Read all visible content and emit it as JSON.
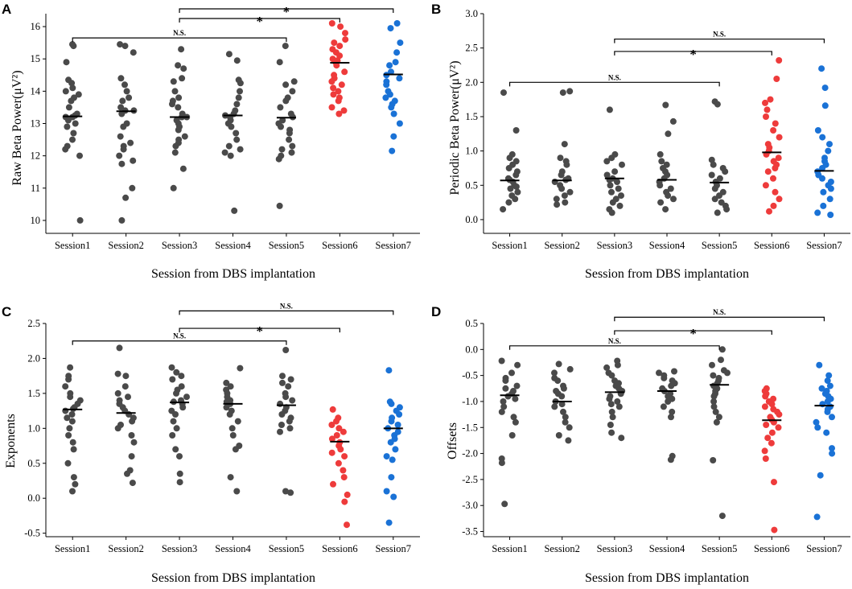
{
  "colors": {
    "gray": "#4a4a4a",
    "red": "#ee3b3b",
    "blue": "#1a72d6"
  },
  "chart_data": [
    {
      "panel": "A",
      "type": "scatter",
      "xlabel": "Session from DBS implantation",
      "ylabel": "Raw Beta Power(μV²)",
      "ylim": [
        9.6,
        16.4
      ],
      "yticks": [
        10,
        11,
        12,
        13,
        14,
        15,
        16
      ],
      "ytick_labels": [
        "10",
        "11",
        "12",
        "13",
        "14",
        "15",
        "16"
      ],
      "categories": [
        "Session1",
        "Session2",
        "Session3",
        "Session4",
        "Session5",
        "Session6",
        "Session7"
      ],
      "series": [
        {
          "name": "Session1",
          "color": "gray",
          "median": 13.22,
          "values": [
            15.45,
            15.4,
            14.9,
            14.35,
            14.25,
            14.1,
            14.0,
            13.9,
            13.8,
            13.7,
            13.5,
            13.3,
            13.25,
            13.2,
            13.2,
            13.1,
            13.0,
            12.9,
            12.7,
            12.5,
            12.3,
            12.2,
            12.0,
            10.0
          ]
        },
        {
          "name": "Session2",
          "color": "gray",
          "median": 13.38,
          "values": [
            15.45,
            15.4,
            15.2,
            14.4,
            14.2,
            14.0,
            13.8,
            13.7,
            13.5,
            13.4,
            13.4,
            13.3,
            13.0,
            12.9,
            12.6,
            12.4,
            12.3,
            12.2,
            12.0,
            11.85,
            11.75,
            11.0,
            10.7,
            10.0
          ]
        },
        {
          "name": "Session3",
          "color": "gray",
          "median": 13.2,
          "values": [
            15.3,
            14.8,
            14.7,
            14.4,
            14.3,
            14.0,
            13.8,
            13.7,
            13.6,
            13.5,
            13.3,
            13.2,
            13.2,
            13.1,
            13.0,
            12.9,
            12.8,
            12.6,
            12.5,
            12.4,
            12.3,
            12.1,
            11.6,
            11.0
          ]
        },
        {
          "name": "Session4",
          "color": "gray",
          "median": 13.25,
          "values": [
            15.15,
            14.95,
            14.35,
            14.25,
            14.0,
            13.8,
            13.6,
            13.4,
            13.3,
            13.25,
            13.2,
            13.1,
            13.0,
            12.9,
            12.7,
            12.5,
            12.3,
            12.2,
            12.1,
            12.0,
            10.3
          ]
        },
        {
          "name": "Session5",
          "color": "gray",
          "median": 13.18,
          "values": [
            15.4,
            14.9,
            14.3,
            14.2,
            14.0,
            13.8,
            13.7,
            13.5,
            13.3,
            13.2,
            13.1,
            13.0,
            12.9,
            12.8,
            12.7,
            12.5,
            12.3,
            12.2,
            12.1,
            12.0,
            11.9,
            10.45
          ]
        },
        {
          "name": "Session6",
          "color": "red",
          "median": 14.88,
          "values": [
            16.1,
            16.0,
            15.8,
            15.6,
            15.5,
            15.4,
            15.3,
            15.2,
            15.1,
            15.0,
            14.95,
            14.9,
            14.8,
            14.6,
            14.5,
            14.4,
            14.3,
            14.2,
            14.1,
            14.0,
            13.9,
            13.8,
            13.7,
            13.5,
            13.4,
            13.3
          ]
        },
        {
          "name": "Session7",
          "color": "blue",
          "median": 14.52,
          "values": [
            16.1,
            15.95,
            15.5,
            15.2,
            14.9,
            14.8,
            14.6,
            14.5,
            14.4,
            14.3,
            14.2,
            14.0,
            13.9,
            13.8,
            13.7,
            13.6,
            13.5,
            13.3,
            13.0,
            12.6,
            12.15
          ]
        }
      ],
      "brackets": [
        {
          "from": 0,
          "to": 4,
          "label": "N.S.",
          "y": 15.65
        },
        {
          "from": 2,
          "to": 5,
          "label": "*",
          "y": 16.25
        },
        {
          "from": 2,
          "to": 6,
          "label": "*",
          "y": 16.55
        }
      ]
    },
    {
      "panel": "B",
      "type": "scatter",
      "xlabel": "Session from DBS implantation",
      "ylabel": "Periodic Beta Power(μV²)",
      "ylim": [
        -0.2,
        3.0
      ],
      "yticks": [
        0.0,
        0.5,
        1.0,
        1.5,
        2.0,
        2.5,
        3.0
      ],
      "ytick_labels": [
        "0.0",
        "0.5",
        "1.0",
        "1.5",
        "2.0",
        "2.5",
        "3.0"
      ],
      "categories": [
        "Session1",
        "Session2",
        "Session3",
        "Session4",
        "Session5",
        "Session6",
        "Session7"
      ],
      "series": [
        {
          "name": "Session1",
          "color": "gray",
          "median": 0.57,
          "values": [
            1.85,
            1.3,
            0.95,
            0.9,
            0.85,
            0.8,
            0.75,
            0.7,
            0.65,
            0.6,
            0.58,
            0.55,
            0.5,
            0.48,
            0.45,
            0.4,
            0.35,
            0.3,
            0.25,
            0.15
          ]
        },
        {
          "name": "Session2",
          "color": "gray",
          "median": 0.57,
          "values": [
            1.87,
            1.85,
            1.1,
            0.9,
            0.85,
            0.8,
            0.7,
            0.65,
            0.6,
            0.58,
            0.55,
            0.5,
            0.45,
            0.4,
            0.35,
            0.3,
            0.25,
            0.22
          ]
        },
        {
          "name": "Session3",
          "color": "gray",
          "median": 0.6,
          "values": [
            1.6,
            0.95,
            0.9,
            0.85,
            0.8,
            0.7,
            0.65,
            0.6,
            0.58,
            0.55,
            0.5,
            0.45,
            0.4,
            0.35,
            0.3,
            0.25,
            0.2,
            0.15,
            0.1
          ]
        },
        {
          "name": "Session4",
          "color": "gray",
          "median": 0.58,
          "values": [
            1.67,
            1.43,
            1.25,
            0.95,
            0.85,
            0.8,
            0.75,
            0.7,
            0.65,
            0.6,
            0.55,
            0.5,
            0.45,
            0.4,
            0.35,
            0.3,
            0.25,
            0.15
          ]
        },
        {
          "name": "Session5",
          "color": "gray",
          "median": 0.54,
          "values": [
            1.72,
            1.68,
            0.87,
            0.8,
            0.75,
            0.7,
            0.65,
            0.6,
            0.55,
            0.5,
            0.45,
            0.4,
            0.35,
            0.3,
            0.25,
            0.2,
            0.15,
            0.1
          ]
        },
        {
          "name": "Session6",
          "color": "red",
          "median": 0.98,
          "values": [
            2.32,
            2.05,
            1.75,
            1.7,
            1.6,
            1.5,
            1.4,
            1.3,
            1.2,
            1.1,
            1.05,
            1.0,
            0.95,
            0.9,
            0.85,
            0.8,
            0.75,
            0.7,
            0.6,
            0.5,
            0.4,
            0.3,
            0.2,
            0.12
          ]
        },
        {
          "name": "Session7",
          "color": "blue",
          "median": 0.71,
          "values": [
            2.2,
            1.92,
            1.66,
            1.3,
            1.2,
            1.1,
            1.0,
            0.9,
            0.85,
            0.8,
            0.75,
            0.7,
            0.65,
            0.6,
            0.55,
            0.5,
            0.45,
            0.4,
            0.3,
            0.2,
            0.1,
            0.07
          ]
        }
      ],
      "brackets": [
        {
          "from": 0,
          "to": 4,
          "label": "N.S.",
          "y": 2.0
        },
        {
          "from": 2,
          "to": 5,
          "label": "*",
          "y": 2.45
        },
        {
          "from": 2,
          "to": 6,
          "label": "N.S.",
          "y": 2.63
        }
      ]
    },
    {
      "panel": "C",
      "type": "scatter",
      "xlabel": "Session from DBS implantation",
      "ylabel": "Exponents",
      "ylim": [
        -0.55,
        2.5
      ],
      "yticks": [
        -0.5,
        0.0,
        0.5,
        1.0,
        1.5,
        2.0,
        2.5
      ],
      "ytick_labels": [
        "-0.5",
        "0.0",
        "0.5",
        "1.0",
        "1.5",
        "2.0",
        "2.5"
      ],
      "categories": [
        "Session1",
        "Session2",
        "Session3",
        "Session4",
        "Session5",
        "Session6",
        "Session7"
      ],
      "series": [
        {
          "name": "Session1",
          "color": "gray",
          "median": 1.27,
          "values": [
            1.87,
            1.75,
            1.7,
            1.6,
            1.5,
            1.45,
            1.4,
            1.35,
            1.3,
            1.28,
            1.25,
            1.2,
            1.15,
            1.1,
            1.0,
            0.9,
            0.8,
            0.7,
            0.5,
            0.3,
            0.2,
            0.1
          ]
        },
        {
          "name": "Session2",
          "color": "gray",
          "median": 1.22,
          "values": [
            2.15,
            1.78,
            1.75,
            1.6,
            1.5,
            1.45,
            1.4,
            1.35,
            1.3,
            1.25,
            1.2,
            1.15,
            1.1,
            1.05,
            1.0,
            0.9,
            0.8,
            0.6,
            0.4,
            0.35,
            0.22
          ]
        },
        {
          "name": "Session3",
          "color": "gray",
          "median": 1.37,
          "values": [
            1.87,
            1.8,
            1.75,
            1.7,
            1.6,
            1.55,
            1.5,
            1.45,
            1.4,
            1.38,
            1.35,
            1.3,
            1.25,
            1.2,
            1.1,
            1.0,
            0.9,
            0.7,
            0.6,
            0.35,
            0.23
          ]
        },
        {
          "name": "Session4",
          "color": "gray",
          "median": 1.35,
          "values": [
            1.86,
            1.65,
            1.6,
            1.55,
            1.5,
            1.45,
            1.4,
            1.38,
            1.35,
            1.3,
            1.25,
            1.2,
            1.1,
            1.0,
            0.9,
            0.75,
            0.7,
            0.3,
            0.1
          ]
        },
        {
          "name": "Session5",
          "color": "gray",
          "median": 1.33,
          "values": [
            2.12,
            1.75,
            1.7,
            1.65,
            1.6,
            1.5,
            1.45,
            1.4,
            1.35,
            1.3,
            1.25,
            1.2,
            1.15,
            1.1,
            1.05,
            1.0,
            0.95,
            0.1,
            0.08
          ]
        },
        {
          "name": "Session6",
          "color": "red",
          "median": 0.81,
          "values": [
            1.27,
            1.15,
            1.1,
            1.05,
            1.0,
            0.95,
            0.9,
            0.85,
            0.8,
            0.75,
            0.7,
            0.65,
            0.6,
            0.5,
            0.4,
            0.3,
            0.2,
            0.05,
            -0.05,
            -0.38
          ]
        },
        {
          "name": "Session7",
          "color": "blue",
          "median": 1.0,
          "values": [
            1.83,
            1.38,
            1.35,
            1.3,
            1.25,
            1.2,
            1.15,
            1.1,
            1.05,
            1.0,
            0.95,
            0.9,
            0.85,
            0.8,
            0.7,
            0.6,
            0.55,
            0.3,
            0.1,
            0.02,
            -0.35
          ]
        }
      ],
      "brackets": [
        {
          "from": 0,
          "to": 4,
          "label": "N.S.",
          "y": 2.25
        },
        {
          "from": 2,
          "to": 5,
          "label": "*",
          "y": 2.43
        },
        {
          "from": 2,
          "to": 6,
          "label": "N.S.",
          "y": 2.68
        }
      ]
    },
    {
      "panel": "D",
      "type": "scatter",
      "xlabel": "Session from DBS implantation",
      "ylabel": "Offsets",
      "ylim": [
        -3.6,
        0.5
      ],
      "yticks": [
        -3.5,
        -3.0,
        -2.5,
        -2.0,
        -1.5,
        -1.0,
        -0.5,
        0.0,
        0.5
      ],
      "ytick_labels": [
        "-3.5",
        "-3.0",
        "-2.5",
        "-2.0",
        "-1.5",
        "-1.0",
        "-0.5",
        "0.0",
        "0.5"
      ],
      "categories": [
        "Session1",
        "Session2",
        "Session3",
        "Session4",
        "Session5",
        "Session6",
        "Session7"
      ],
      "series": [
        {
          "name": "Session1",
          "color": "gray",
          "median": -0.88,
          "values": [
            -0.22,
            -0.3,
            -0.45,
            -0.55,
            -0.6,
            -0.7,
            -0.75,
            -0.8,
            -0.85,
            -0.9,
            -0.95,
            -1.0,
            -1.1,
            -1.2,
            -1.3,
            -1.4,
            -1.65,
            -2.1,
            -2.18,
            -2.97
          ]
        },
        {
          "name": "Session2",
          "color": "gray",
          "median": -1.0,
          "values": [
            -0.28,
            -0.38,
            -0.45,
            -0.55,
            -0.6,
            -0.7,
            -0.75,
            -0.8,
            -0.85,
            -0.9,
            -1.0,
            -1.05,
            -1.1,
            -1.2,
            -1.3,
            -1.4,
            -1.5,
            -1.65,
            -1.75
          ]
        },
        {
          "name": "Session3",
          "color": "gray",
          "median": -0.82,
          "values": [
            -0.22,
            -0.3,
            -0.35,
            -0.45,
            -0.5,
            -0.6,
            -0.65,
            -0.7,
            -0.75,
            -0.8,
            -0.85,
            -0.9,
            -0.95,
            -1.0,
            -1.05,
            -1.1,
            -1.2,
            -1.3,
            -1.45,
            -1.6,
            -1.7
          ]
        },
        {
          "name": "Session4",
          "color": "gray",
          "median": -0.8,
          "values": [
            -0.42,
            -0.45,
            -0.5,
            -0.55,
            -0.6,
            -0.65,
            -0.7,
            -0.75,
            -0.8,
            -0.85,
            -0.9,
            -0.95,
            -1.0,
            -1.1,
            -1.2,
            -1.3,
            -2.05,
            -2.12
          ]
        },
        {
          "name": "Session5",
          "color": "gray",
          "median": -0.68,
          "values": [
            0.0,
            -0.2,
            -0.3,
            -0.4,
            -0.45,
            -0.5,
            -0.55,
            -0.6,
            -0.65,
            -0.7,
            -0.75,
            -0.8,
            -0.85,
            -0.9,
            -1.0,
            -1.1,
            -1.2,
            -1.3,
            -1.4,
            -2.13,
            -3.2
          ]
        },
        {
          "name": "Session6",
          "color": "red",
          "median": -1.36,
          "values": [
            -0.75,
            -0.8,
            -0.85,
            -0.9,
            -0.95,
            -1.0,
            -1.05,
            -1.1,
            -1.15,
            -1.2,
            -1.25,
            -1.3,
            -1.35,
            -1.4,
            -1.45,
            -1.5,
            -1.6,
            -1.7,
            -1.8,
            -1.95,
            -2.1,
            -2.55,
            -3.47
          ]
        },
        {
          "name": "Session7",
          "color": "blue",
          "median": -1.08,
          "values": [
            -0.3,
            -0.5,
            -0.6,
            -0.7,
            -0.75,
            -0.8,
            -0.85,
            -0.9,
            -0.95,
            -1.0,
            -1.05,
            -1.1,
            -1.15,
            -1.2,
            -1.3,
            -1.4,
            -1.5,
            -1.6,
            -1.9,
            -2.0,
            -2.42,
            -3.22
          ]
        }
      ],
      "brackets": [
        {
          "from": 0,
          "to": 4,
          "label": "N.S.",
          "y": 0.07
        },
        {
          "from": 2,
          "to": 5,
          "label": "*",
          "y": 0.36
        },
        {
          "from": 2,
          "to": 6,
          "label": "N.S.",
          "y": 0.62
        }
      ]
    }
  ]
}
